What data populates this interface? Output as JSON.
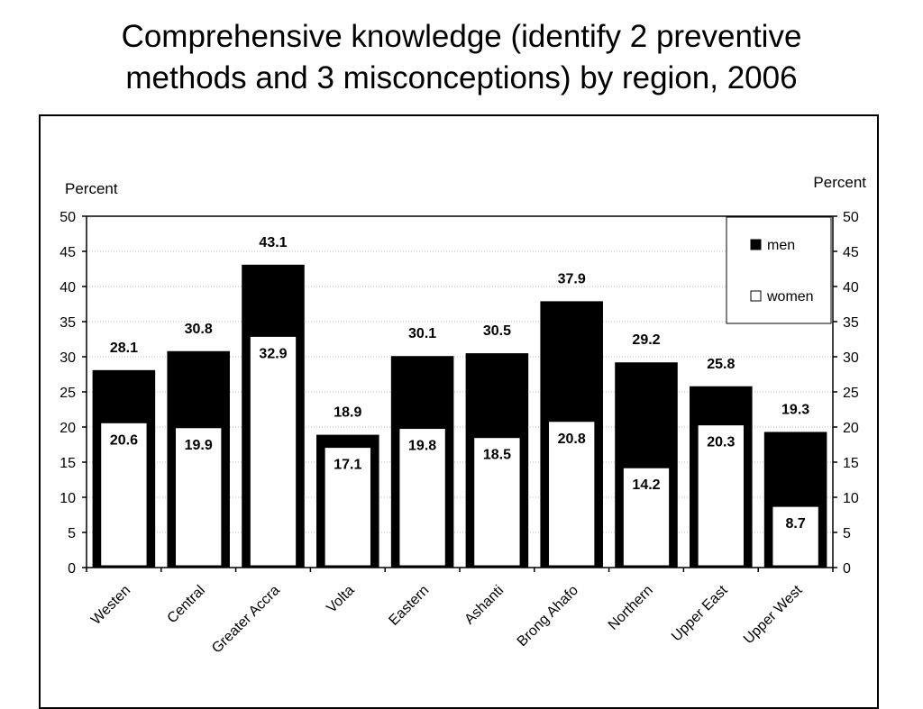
{
  "slide": {
    "title_line1": "Comprehensive knowledge (identify 2 preventive",
    "title_line2": "methods and 3 misconceptions) by region, 2006"
  },
  "chart_data": {
    "type": "bar",
    "title": "",
    "ylabel_left": "Percent",
    "ylabel_right": "Percent",
    "ylim": [
      0,
      50
    ],
    "yticks": [
      0,
      5,
      10,
      15,
      20,
      25,
      30,
      35,
      40,
      45,
      50
    ],
    "grid": true,
    "legend_position": "top-right",
    "categories": [
      "Westen",
      "Central",
      "Greater Accra",
      "Volta",
      "Eastern",
      "Ashanti",
      "Brong Ahafo",
      "Northern",
      "Upper East",
      "Upper West"
    ],
    "series": [
      {
        "name": "men",
        "color": "#000000",
        "values": [
          28.1,
          30.8,
          43.1,
          18.9,
          30.1,
          30.5,
          37.9,
          29.2,
          25.8,
          19.3
        ]
      },
      {
        "name": "women",
        "color": "#ffffff",
        "values": [
          20.6,
          19.9,
          32.9,
          17.1,
          19.8,
          18.5,
          20.8,
          14.2,
          20.3,
          8.7
        ]
      }
    ]
  }
}
